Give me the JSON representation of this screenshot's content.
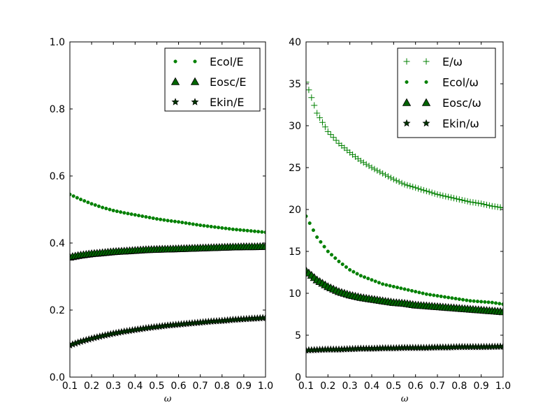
{
  "colors": {
    "marker_green": "#008000",
    "marker_dark": "#003300",
    "edge": "#000000",
    "frame": "#000000",
    "background": "#ffffff"
  },
  "chart_data": [
    {
      "type": "scatter",
      "xlabel": "ω",
      "ylabel": "",
      "xlim": [
        0.1,
        1.0
      ],
      "ylim": [
        0.0,
        1.0
      ],
      "x_ticks": [
        "0.1",
        "0.2",
        "0.3",
        "0.4",
        "0.5",
        "0.6",
        "0.7",
        "0.8",
        "0.9",
        "1.0"
      ],
      "y_ticks": [
        "0.0",
        "0.2",
        "0.4",
        "0.6",
        "0.8",
        "1.0"
      ],
      "grid": false,
      "legend_position": "top-right",
      "x": [
        0.1,
        0.15,
        0.2,
        0.25,
        0.3,
        0.35,
        0.4,
        0.45,
        0.5,
        0.55,
        0.6,
        0.65,
        0.7,
        0.75,
        0.8,
        0.85,
        0.9,
        0.95,
        1.0
      ],
      "series": [
        {
          "name": "Ecol/E",
          "marker": "dot",
          "color": "#008000",
          "values": [
            0.545,
            0.53,
            0.517,
            0.506,
            0.497,
            0.49,
            0.484,
            0.478,
            0.472,
            0.467,
            0.463,
            0.458,
            0.453,
            0.449,
            0.445,
            0.441,
            0.438,
            0.435,
            0.432
          ]
        },
        {
          "name": "Eosc/E",
          "marker": "triangle",
          "color": "#006400",
          "values": [
            0.358,
            0.364,
            0.368,
            0.371,
            0.374,
            0.376,
            0.378,
            0.38,
            0.381,
            0.382,
            0.383,
            0.384,
            0.385,
            0.386,
            0.387,
            0.388,
            0.389,
            0.389,
            0.39
          ]
        },
        {
          "name": "Ekin/E",
          "marker": "star",
          "color": "#003300",
          "values": [
            0.095,
            0.106,
            0.115,
            0.123,
            0.13,
            0.136,
            0.141,
            0.146,
            0.15,
            0.154,
            0.157,
            0.16,
            0.163,
            0.166,
            0.168,
            0.171,
            0.173,
            0.175,
            0.177
          ]
        }
      ]
    },
    {
      "type": "scatter",
      "xlabel": "ω",
      "ylabel": "",
      "xlim": [
        0.1,
        1.0
      ],
      "ylim": [
        0,
        40
      ],
      "x_ticks": [
        "0.1",
        "0.2",
        "0.3",
        "0.4",
        "0.5",
        "0.6",
        "0.7",
        "0.8",
        "0.9",
        "1.0"
      ],
      "y_ticks": [
        "0",
        "5",
        "10",
        "15",
        "20",
        "25",
        "30",
        "35",
        "40"
      ],
      "grid": false,
      "legend_position": "top-right",
      "x": [
        0.1,
        0.15,
        0.2,
        0.25,
        0.3,
        0.35,
        0.4,
        0.45,
        0.5,
        0.55,
        0.6,
        0.65,
        0.7,
        0.75,
        0.8,
        0.85,
        0.9,
        0.95,
        1.0
      ],
      "series": [
        {
          "name": "E/ω",
          "marker": "plus",
          "color": "#008000",
          "values": [
            35.2,
            31.5,
            29.3,
            27.9,
            26.8,
            25.8,
            25.0,
            24.3,
            23.6,
            23.0,
            22.6,
            22.2,
            21.8,
            21.5,
            21.2,
            20.9,
            20.7,
            20.4,
            20.2
          ]
        },
        {
          "name": "Ecol/ω",
          "marker": "dot",
          "color": "#008000",
          "values": [
            19.2,
            16.7,
            15.0,
            13.8,
            12.8,
            12.1,
            11.6,
            11.1,
            10.8,
            10.5,
            10.2,
            9.9,
            9.7,
            9.5,
            9.3,
            9.1,
            9.0,
            8.9,
            8.7
          ]
        },
        {
          "name": "Eosc/ω",
          "marker": "triangle",
          "color": "#006400",
          "values": [
            12.7,
            11.6,
            10.8,
            10.2,
            9.8,
            9.5,
            9.3,
            9.1,
            8.9,
            8.8,
            8.6,
            8.5,
            8.4,
            8.3,
            8.2,
            8.1,
            8.0,
            7.9,
            7.8
          ]
        },
        {
          "name": "Ekin/ω",
          "marker": "star",
          "color": "#003300",
          "values": [
            3.2,
            3.25,
            3.3,
            3.3,
            3.35,
            3.4,
            3.4,
            3.45,
            3.45,
            3.5,
            3.5,
            3.5,
            3.55,
            3.55,
            3.6,
            3.6,
            3.6,
            3.62,
            3.65
          ]
        }
      ]
    }
  ]
}
